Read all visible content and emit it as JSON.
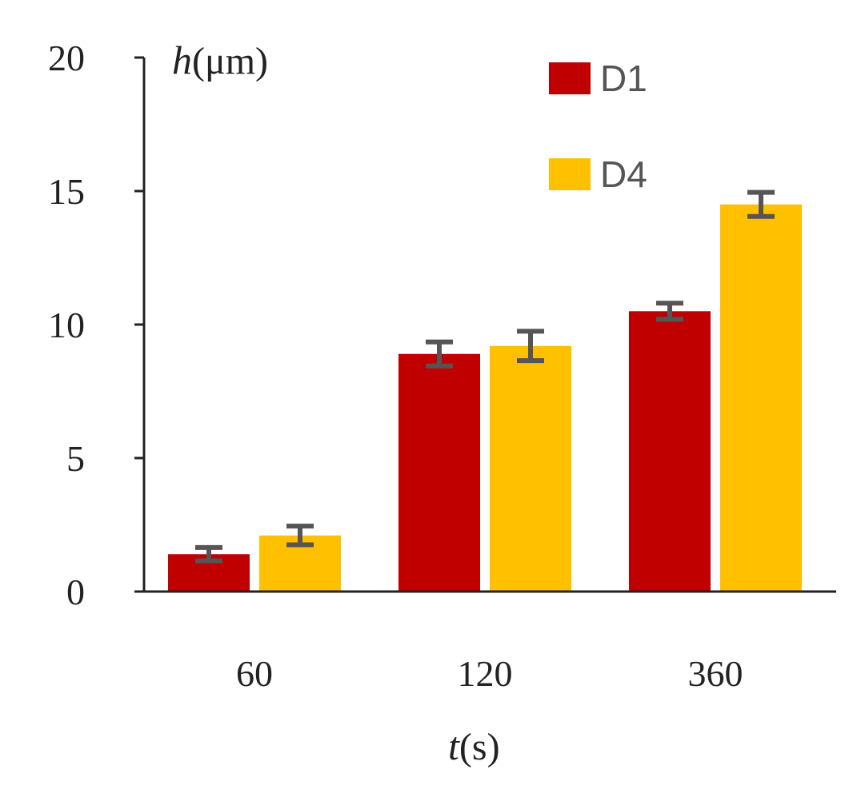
{
  "chart_data": {
    "type": "bar",
    "title": "",
    "xlabel": {
      "var": "t",
      "unit": "(s)"
    },
    "ylabel": {
      "var": "h",
      "unit": "(μm)"
    },
    "categories": [
      "60",
      "120",
      "360"
    ],
    "ylim": [
      0,
      20
    ],
    "yticks": [
      0,
      5,
      10,
      15,
      20
    ],
    "grid": false,
    "legend_position": "top-right",
    "series": [
      {
        "name": "D1",
        "color": "#C00000",
        "values": [
          1.4,
          8.9,
          10.5
        ],
        "errors": [
          0.25,
          0.45,
          0.3
        ]
      },
      {
        "name": "D4",
        "color": "#FFC000",
        "values": [
          2.1,
          9.2,
          14.5
        ],
        "errors": [
          0.35,
          0.55,
          0.45
        ]
      }
    ],
    "error_bar_color": "#555555"
  }
}
